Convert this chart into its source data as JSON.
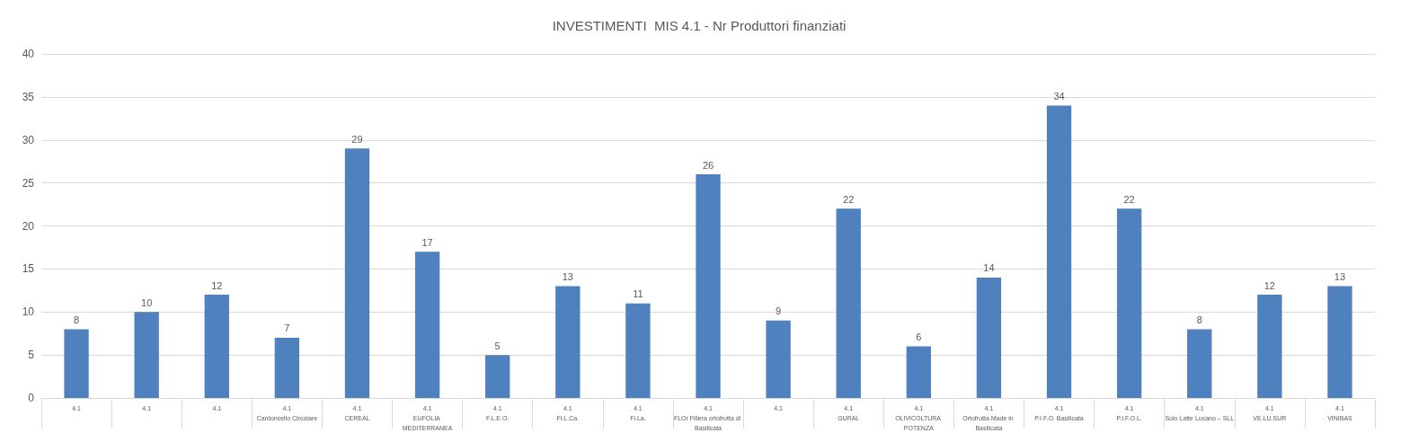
{
  "chart_data": {
    "type": "bar",
    "title": "INVESTIMENTI  MIS 4.1 - Nr Produttori finanziati",
    "categories": [
      "4.1",
      "4.1",
      "4.1",
      "4.1\nCardoncello Circolare",
      "4.1\nCEREAL",
      "4.1\nEUFOLIA MEDITERRANEA",
      "4.1\nF.L.E.O.",
      "4.1\nFi.L.Ca.",
      "4.1\nFi.La.",
      "4.1\nFLOr Filiera ortofrutta di Basilicata",
      "4.1",
      "4.1\nGURAL",
      "4.1\nOLIVICOLTURA POTENZA",
      "4.1\nOrtofrutta Made in Basilicata",
      "4.1\nP.I.F.O. Basilicata",
      "4.1\nP.I.F.O.L.",
      "4.1\nSolo Latte Lucano – SLL",
      "4.1\nVE.LU.SUR",
      "4.1\nVINIBAS"
    ],
    "values": [
      8,
      10,
      12,
      7,
      29,
      17,
      5,
      13,
      11,
      26,
      9,
      22,
      6,
      14,
      34,
      22,
      8,
      12,
      13
    ],
    "color": "#4e81bd",
    "ylim": [
      0,
      40
    ],
    "yticks": [
      0,
      5,
      10,
      15,
      20,
      25,
      30,
      35,
      40
    ],
    "grid": "y",
    "data_labels": true
  }
}
